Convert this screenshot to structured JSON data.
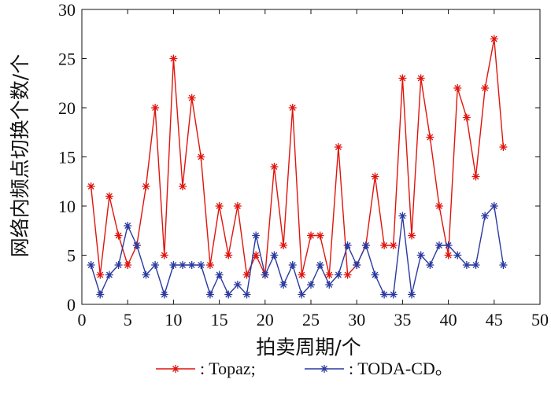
{
  "chart_data": {
    "type": "line",
    "xlabel": "拍卖周期/个",
    "ylabel": "网络内频点切换个数/个",
    "xlim": [
      0,
      50
    ],
    "ylim": [
      0,
      30
    ],
    "xticks": [
      0,
      5,
      10,
      15,
      20,
      25,
      30,
      35,
      40,
      45,
      50
    ],
    "yticks": [
      0,
      5,
      10,
      15,
      20,
      25,
      30
    ],
    "grid": false,
    "legend_position": "bottom",
    "series": [
      {
        "name": ": Topaz;",
        "color": "#e0140c",
        "marker": "asterisk",
        "x": [
          1,
          2,
          3,
          4,
          5,
          6,
          7,
          8,
          9,
          10,
          11,
          12,
          13,
          14,
          15,
          16,
          17,
          18,
          19,
          20,
          21,
          22,
          23,
          24,
          25,
          26,
          27,
          28,
          29,
          30,
          31,
          32,
          33,
          34,
          35,
          36,
          37,
          38,
          39,
          40,
          41,
          42,
          43,
          44,
          45,
          46
        ],
        "values": [
          12,
          3,
          11,
          7,
          4,
          6,
          12,
          20,
          5,
          25,
          12,
          21,
          15,
          4,
          10,
          5,
          10,
          3,
          5,
          3,
          14,
          6,
          20,
          3,
          7,
          7,
          3,
          16,
          3,
          4,
          6,
          13,
          6,
          6,
          23,
          7,
          23,
          17,
          10,
          5,
          22,
          19,
          13,
          22,
          27,
          16
        ]
      },
      {
        "name": ": TODA-CD。",
        "color": "#2a3aa0",
        "marker": "asterisk",
        "x": [
          1,
          2,
          3,
          4,
          5,
          6,
          7,
          8,
          9,
          10,
          11,
          12,
          13,
          14,
          15,
          16,
          17,
          18,
          19,
          20,
          21,
          22,
          23,
          24,
          25,
          26,
          27,
          28,
          29,
          30,
          31,
          32,
          33,
          34,
          35,
          36,
          37,
          38,
          39,
          40,
          41,
          42,
          43,
          44,
          45,
          46
        ],
        "values": [
          4,
          1,
          3,
          4,
          8,
          6,
          3,
          4,
          1,
          4,
          4,
          4,
          4,
          1,
          3,
          1,
          2,
          1,
          7,
          3,
          5,
          2,
          4,
          1,
          2,
          4,
          2,
          3,
          6,
          4,
          6,
          3,
          1,
          1,
          9,
          1,
          5,
          4,
          6,
          6,
          5,
          4,
          4,
          9,
          10,
          4
        ]
      }
    ]
  }
}
